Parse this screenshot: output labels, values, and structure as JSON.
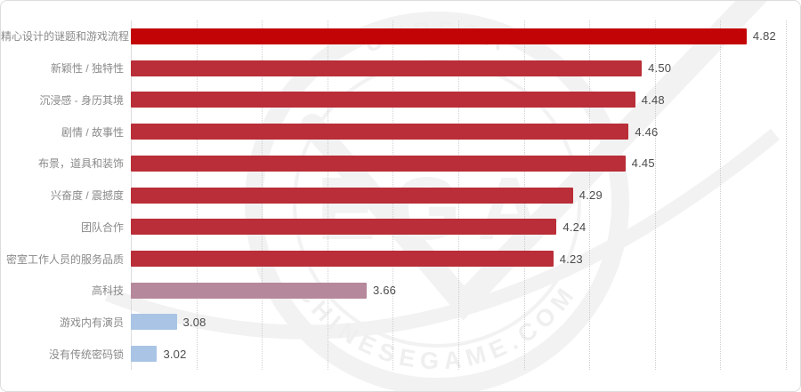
{
  "window": {
    "background": "#ffffff",
    "card_border_color": "#dddddd"
  },
  "watermark": {
    "top_arc_text": "UNREGA",
    "bottom_arc_text": "CHINESEGAME.COM",
    "center_text": "EGA",
    "color": "#f2f2f2"
  },
  "chart_data": {
    "type": "bar",
    "orientation": "horizontal",
    "title": "",
    "categories": [
      "精心设计的谜题和游戏流程",
      "新颖性 / 独特性",
      "沉浸感 - 身历其境",
      "剧情 / 故事性",
      "布景，道具和装饰",
      "兴奋度 / 震撼度",
      "团队合作",
      "密室工作人员的服务品质",
      "高科技",
      "游戏内有演员",
      "没有传统密码锁"
    ],
    "values": [
      4.82,
      4.5,
      4.48,
      4.46,
      4.45,
      4.29,
      4.24,
      4.23,
      3.66,
      3.08,
      3.02
    ],
    "value_labels": [
      "4.82",
      "4.50",
      "4.48",
      "4.46",
      "4.45",
      "4.29",
      "4.24",
      "4.23",
      "3.66",
      "3.08",
      "3.02"
    ],
    "bar_colors": [
      "#c20407",
      "#b92e38",
      "#b92e38",
      "#b92e38",
      "#b92e38",
      "#b92e38",
      "#b92e38",
      "#b92e38",
      "#b6889b",
      "#a9c4e5",
      "#a9c4e5"
    ],
    "axis": {
      "min": 2.94,
      "max": 4.94,
      "gridline_count": 10,
      "grid_style": "dotted",
      "tick_labels_visible": false
    },
    "legend": {
      "visible": false
    },
    "styles": {
      "highlight_bar_color": "#c20407",
      "main_bar_color": "#b92e38",
      "muted_bar_color": "#b6889b",
      "low_bar_color": "#a9c4e5",
      "category_label_color": "#8a8a8a",
      "value_label_color": "#4d4d4d",
      "gridline_color": "#cfcfcf",
      "axis_line_color": "#dcdcdc"
    }
  }
}
